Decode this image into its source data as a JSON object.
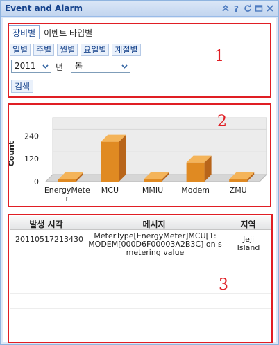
{
  "window": {
    "title": "Event and Alarm"
  },
  "toolbar": {
    "icons": [
      "collapse-icon",
      "help-icon",
      "refresh-icon",
      "maximize-icon",
      "close-icon"
    ]
  },
  "tabs": [
    {
      "label": "장비별",
      "active": true
    },
    {
      "label": "이벤트 타입별",
      "active": false
    }
  ],
  "period_buttons": [
    "일별",
    "주별",
    "월별",
    "요일별",
    "계절별"
  ],
  "filters": {
    "year_value": "2011",
    "year_suffix": "년",
    "season_value": "봄",
    "search_label": "검색"
  },
  "annotations": {
    "box1": "1",
    "box2": "2",
    "box3": "3"
  },
  "chart_data": {
    "type": "bar",
    "categories": [
      "EnergyMeter",
      "MCU",
      "MMIU",
      "Modem",
      "ZMU"
    ],
    "values": [
      0,
      210,
      0,
      100,
      0
    ],
    "ylabel": "Count",
    "yticks": [
      0,
      120,
      240
    ],
    "ylim": [
      0,
      300
    ],
    "colors": {
      "bar_front": "#e08a22",
      "bar_side": "#b8651a",
      "bar_top": "#f4b45a"
    }
  },
  "grid": {
    "columns": [
      "발생 시각",
      "메시지",
      "지역"
    ],
    "rows": [
      {
        "time": "20110517213430",
        "message": "MeterType[EnergyMeter]MCU[1: MODEM[000D6F00003A2B3C] on s metering value",
        "message_lines": [
          "MeterType[EnergyMeter]MCU[1:",
          "MODEM[000D6F00003A2B3C] on s",
          "metering value"
        ],
        "region_lines": [
          "Jeji",
          "Island"
        ]
      }
    ]
  }
}
